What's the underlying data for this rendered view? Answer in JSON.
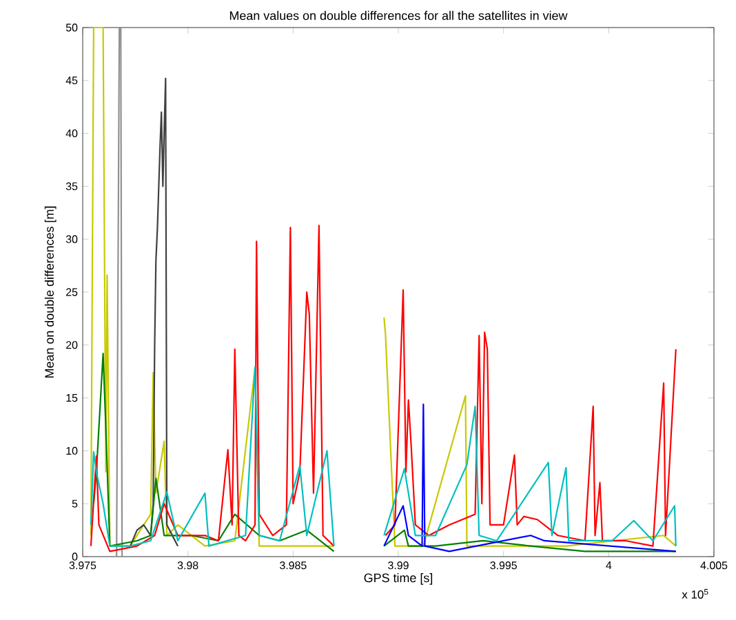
{
  "chart_data": {
    "type": "line",
    "title": "Mean values on double differences for all the satellites in view",
    "xlabel": "GPS time [s]",
    "ylabel": "Mean on double differences [m]",
    "annotations": [
      "x 10$^{5}$"
    ],
    "xlim": [
      3.975,
      4.005
    ],
    "ylim": [
      0,
      50
    ],
    "xticks": [
      3.975,
      3.98,
      3.985,
      3.99,
      3.995,
      4,
      4.005
    ],
    "yticks": [
      0,
      5,
      10,
      15,
      20,
      25,
      30,
      35,
      40,
      45,
      50
    ],
    "series": [
      {
        "color": "#c8c800",
        "x": [
          3.97539,
          3.97552,
          3.97565,
          3.97577,
          3.97597,
          3.9761,
          3.97616,
          3.97629,
          3.97726,
          3.9779,
          3.97823,
          3.97835,
          3.97848,
          3.97887,
          3.979,
          3.97952,
          3.98081,
          3.98223,
          3.98319,
          3.98339,
          3.98468,
          3.98597,
          3.98694,
          3.988,
          3.98932,
          3.98939,
          3.98984,
          3.99119,
          3.99319,
          3.99326,
          3.995,
          3.99797,
          4.00261,
          4.00319
        ],
        "values": [
          2,
          50,
          50,
          50,
          50,
          8,
          26.6,
          1,
          1,
          3,
          4,
          17.4,
          6,
          10.9,
          2,
          3,
          1,
          1.5,
          17.8,
          1,
          1,
          1,
          1,
          null,
          22.6,
          21,
          1,
          1,
          15.2,
          1,
          1,
          1,
          2,
          1
        ]
      },
      {
        "color": "#909090",
        "x": [
          3.97661,
          3.97674,
          3.97681,
          3.97687
        ],
        "values": [
          0,
          50,
          50,
          0
        ]
      },
      {
        "color": "#404040",
        "x": [
          3.97726,
          3.97758,
          3.9779,
          3.97823,
          3.97835,
          3.97842,
          3.97848,
          3.97855,
          3.97868,
          3.97874,
          3.97881,
          3.97887,
          3.97894,
          3.979,
          3.97952
        ],
        "values": [
          1,
          2.5,
          3,
          2,
          5,
          20,
          28,
          31,
          39,
          42,
          35,
          40,
          45.2,
          3,
          1
        ]
      },
      {
        "color": "#008000",
        "x": [
          3.97552,
          3.97565,
          3.97597,
          3.9761,
          3.97629,
          3.97758,
          3.97823,
          3.97848,
          3.97887,
          3.98016,
          3.98145,
          3.98223,
          3.98339,
          3.98436,
          3.98565,
          3.98661,
          3.98694,
          3.988,
          3.98932,
          3.99029,
          3.99048,
          3.99177,
          3.99403,
          3.99629,
          3.99887,
          4.00145,
          4.00319
        ],
        "values": [
          5,
          8,
          19.2,
          12.2,
          1,
          1.5,
          2,
          7.4,
          2,
          2,
          1.5,
          4,
          2,
          1.5,
          2.5,
          1,
          0.5,
          null,
          1,
          2.5,
          1,
          1,
          1.5,
          1,
          0.5,
          0.5,
          0.5
        ]
      },
      {
        "color": "#ff0000",
        "x": [
          3.97539,
          3.97565,
          3.97577,
          3.97629,
          3.97758,
          3.97842,
          3.97887,
          3.97952,
          3.98081,
          3.98145,
          3.9819,
          3.9821,
          3.98223,
          3.98242,
          3.98274,
          3.98319,
          3.98326,
          3.98339,
          3.98403,
          3.98468,
          3.98487,
          3.985,
          3.98532,
          3.98565,
          3.98577,
          3.98597,
          3.98623,
          3.98642,
          3.98694,
          3.988,
          3.98939,
          3.98984,
          3.99023,
          3.99036,
          3.99048,
          3.99061,
          3.99081,
          3.99145,
          3.99242,
          3.99365,
          3.99384,
          3.99397,
          3.9941,
          3.99423,
          3.99436,
          3.995,
          3.99552,
          3.99565,
          3.99597,
          3.99661,
          3.99758,
          3.99887,
          3.99926,
          3.99935,
          3.99958,
          3.9997,
          4.00081,
          4.0021,
          4.00261,
          4.0027,
          4.00319
        ],
        "values": [
          1,
          9.5,
          3,
          0.5,
          1,
          2,
          5,
          2,
          2,
          1.5,
          10.1,
          3,
          19.6,
          2,
          1.5,
          3,
          29.8,
          4,
          2,
          3,
          31.1,
          5,
          8,
          25.0,
          22.9,
          6,
          31.3,
          2,
          1,
          null,
          2,
          3,
          25.2,
          8,
          14.8,
          10.5,
          3,
          2,
          3,
          4,
          20.9,
          5,
          21.2,
          19.6,
          3,
          3,
          9.6,
          3,
          3.8,
          3.5,
          2,
          1.5,
          14.2,
          2,
          7.0,
          1.5,
          1.5,
          1,
          16.4,
          2,
          19.6
        ]
      },
      {
        "color": "#0000ff",
        "x": [
          3.98932,
          3.99023,
          3.99048,
          3.99113,
          3.99119,
          3.99126,
          3.99242,
          3.99629,
          3.99694,
          4.00319
        ],
        "values": [
          1,
          4.8,
          2,
          1,
          14.4,
          1,
          0.5,
          2,
          1.5,
          0.5
        ]
      },
      {
        "color": "#00bfbf",
        "x": [
          3.97539,
          3.97552,
          3.97565,
          3.97597,
          3.97629,
          3.97726,
          3.97823,
          3.979,
          3.97952,
          3.98081,
          3.981,
          3.98274,
          3.98319,
          3.98339,
          3.98436,
          3.98532,
          3.98565,
          3.98661,
          3.98694,
          3.988,
          3.98932,
          3.99029,
          3.99048,
          3.99081,
          3.99177,
          3.99326,
          3.99365,
          3.99384,
          3.99468,
          3.99713,
          3.9973,
          3.99797,
          3.9981,
          4.00016,
          4.00119,
          4.0021,
          4.00313,
          4.00319
        ],
        "values": [
          3,
          9.9,
          8,
          5,
          1,
          1,
          1.5,
          6.1,
          1.5,
          6.0,
          1,
          2,
          17.9,
          2,
          1.5,
          8.6,
          2,
          10.0,
          1,
          null,
          2,
          8.3,
          6,
          2,
          2,
          8.7,
          14.2,
          2,
          1.5,
          8.9,
          2,
          8.4,
          1.5,
          1.5,
          3.4,
          1.5,
          4.8,
          1
        ]
      }
    ]
  }
}
